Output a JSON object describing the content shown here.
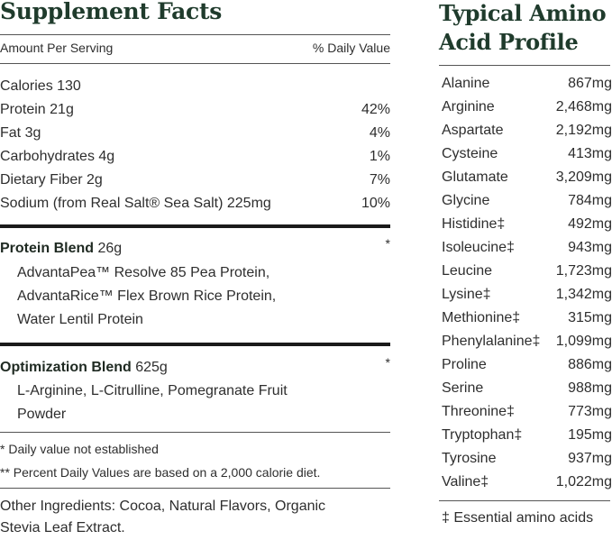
{
  "supplement": {
    "title": "Supplement Facts",
    "header_left": "Amount Per Serving",
    "header_right": "% Daily Value",
    "calories": "Calories 130",
    "nutrients": [
      {
        "label": "Protein 21g",
        "dv": "42%"
      },
      {
        "label": "Fat 3g",
        "dv": "4%"
      },
      {
        "label": "Carbohydrates 4g",
        "dv": "1%"
      },
      {
        "label": "Dietary Fiber 2g",
        "dv": "7%"
      },
      {
        "label": "Sodium (from Real Salt® Sea Salt) 225mg",
        "dv": "10%"
      }
    ],
    "protein_blend": {
      "name": "Protein Blend",
      "amount": " 26g",
      "mark": "*",
      "lines": [
        "AdvantaPea™ Resolve 85 Pea Protein,",
        "AdvantaRice™ Flex Brown Rice Protein,",
        "Water Lentil Protein"
      ]
    },
    "optimization_blend": {
      "name": "Optimization Blend",
      "amount": " 625g",
      "mark": "*",
      "lines": [
        "L-Arginine, L-Citrulline, Pomegranate Fruit",
        "Powder"
      ]
    },
    "footnotes": [
      "* Daily value not established",
      "** Percent Daily Values are based on a 2,000 calorie diet."
    ],
    "other_ingredients": [
      "Other Ingredients: Cocoa, Natural Flavors, Organic",
      "Stevia Leaf Extract."
    ]
  },
  "amino": {
    "title_line1": "Typical Amino",
    "title_line2": "Acid Profile",
    "items": [
      {
        "name": "Alanine",
        "value": "867mg"
      },
      {
        "name": "Arginine",
        "value": "2,468mg"
      },
      {
        "name": "Aspartate",
        "value": "2,192mg"
      },
      {
        "name": "Cysteine",
        "value": "413mg"
      },
      {
        "name": "Glutamate",
        "value": "3,209mg"
      },
      {
        "name": "Glycine",
        "value": "784mg"
      },
      {
        "name": "Histidine‡",
        "value": "492mg"
      },
      {
        "name": "Isoleucine‡",
        "value": "943mg"
      },
      {
        "name": "Leucine",
        "value": "1,723mg"
      },
      {
        "name": "Lysine‡",
        "value": "1,342mg"
      },
      {
        "name": "Methionine‡",
        "value": "315mg"
      },
      {
        "name": "Phenylalanine‡",
        "value": "1,099mg"
      },
      {
        "name": "Proline",
        "value": "886mg"
      },
      {
        "name": "Serine",
        "value": "988mg"
      },
      {
        "name": "Threonine‡",
        "value": "773mg"
      },
      {
        "name": "Tryptophan‡",
        "value": "195mg"
      },
      {
        "name": "Tyrosine",
        "value": "937mg"
      },
      {
        "name": "Valine‡",
        "value": "1,022mg"
      }
    ],
    "footnote": "‡  Essential amino acids"
  },
  "colors": {
    "title": "#1f3b2c",
    "text": "#2e2e2e",
    "rule": "#1a1a1a"
  }
}
